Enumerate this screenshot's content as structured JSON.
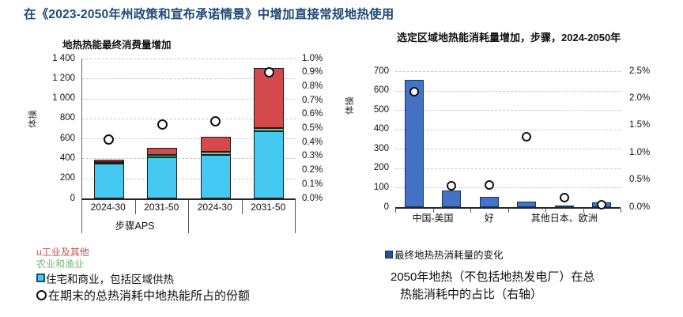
{
  "page_title": "在《2023-2050年州政策和宣布承诺情景》中增加直接常规地热使用",
  "colors": {
    "title_blue": "#1F4977",
    "cyan": "#45C8F1",
    "green": "#5BD96E",
    "red": "#D4494C",
    "royal_blue": "#4472C4",
    "navy_border": "#17375E",
    "legend_red_text": "#C0504D",
    "legend_green_text": "#6FBF72"
  },
  "chart_data": [
    {
      "type": "bar",
      "subtype": "stacked-bars-with-share-dots",
      "title": "地热热能最终消费量增加",
      "y_axis_label": "体操",
      "ylim": [
        0,
        1400
      ],
      "ytick_labels": [
        "1 400",
        "1 200",
        "1 000",
        "800",
        "600",
        "400",
        "200",
        "0"
      ],
      "y2lim": [
        0,
        1.0
      ],
      "y2tick_labels": [
        "1.0%",
        "0.9%",
        "0.8%",
        "0.7%",
        "0.6%",
        "0.5%",
        "0.4%",
        "0.3%",
        "0.2%",
        "0.1%",
        "0.0%"
      ],
      "categories": [
        "2024-30",
        "2031-50",
        "2024-30",
        "2031-50"
      ],
      "group_labels_text": "步骤APS",
      "series": [
        {
          "name": "住宅和商业，包括区域供热",
          "color_key": "cyan",
          "values": [
            350,
            410,
            435,
            670
          ]
        },
        {
          "name": "农业和渔业",
          "color_key": "green",
          "values": [
            15,
            25,
            30,
            35
          ]
        },
        {
          "name": "工业及其他",
          "color_key": "red",
          "values": [
            25,
            75,
            155,
            600
          ]
        }
      ],
      "share_dots": {
        "name": "在期末的总热消耗中地热能所占的份额",
        "axis": "right",
        "values_pct": [
          0.42,
          0.53,
          0.55,
          0.9
        ]
      },
      "legend_position": "bottom-left",
      "grid": "horizontal-dashed"
    },
    {
      "type": "bar",
      "subtype": "single-series-with-share-dots",
      "title": "选定区域地热能消耗量增加，步骤，2024-2050年",
      "y_axis_label": "体操",
      "ylim": [
        0,
        700
      ],
      "ytick_labels": [
        "700",
        "600",
        "500",
        "400",
        "300",
        "200",
        "100",
        "0"
      ],
      "y2lim": [
        0,
        2.5
      ],
      "y2tick_labels": [
        "2.5%",
        "2.0%",
        "1.5%",
        "1.0%",
        "0.5%",
        "0.0%"
      ],
      "bar_series_name": "最终地热热消耗量的变化",
      "values": [
        655,
        85,
        55,
        30,
        8,
        25
      ],
      "x_label_spans": [
        {
          "label": "中国-美国",
          "span": 2
        },
        {
          "label": "好",
          "span": 1
        },
        {
          "label": "其他日本、欧洲",
          "span": 3
        }
      ],
      "share_dots": {
        "name": "2050年地热（不包括地热发电厂）在总热能消耗中的占比（右轴）",
        "axis": "right",
        "values_pct": [
          2.12,
          0.39,
          0.41,
          1.29,
          0.17,
          0.05
        ]
      },
      "grid": "horizontal-dashed"
    }
  ],
  "legend_left": {
    "items": [
      {
        "bullet": "u",
        "label": "工业及其他"
      },
      {
        "bullet": "",
        "label": "农业和渔业"
      },
      {
        "bullet": "square-cyan",
        "label": "住宅和商业，包括区域供热"
      },
      {
        "bullet": "ring",
        "label": "在期末的总热消耗中地热能所占的份额"
      }
    ]
  },
  "legend_right": {
    "bullet": "square-navy",
    "label": "最终地热热消耗量的变化"
  },
  "footnote_right": {
    "line1": "2050年地热（不包括地热发电厂）在总",
    "line2": "热能消耗中的占比（右轴）"
  }
}
